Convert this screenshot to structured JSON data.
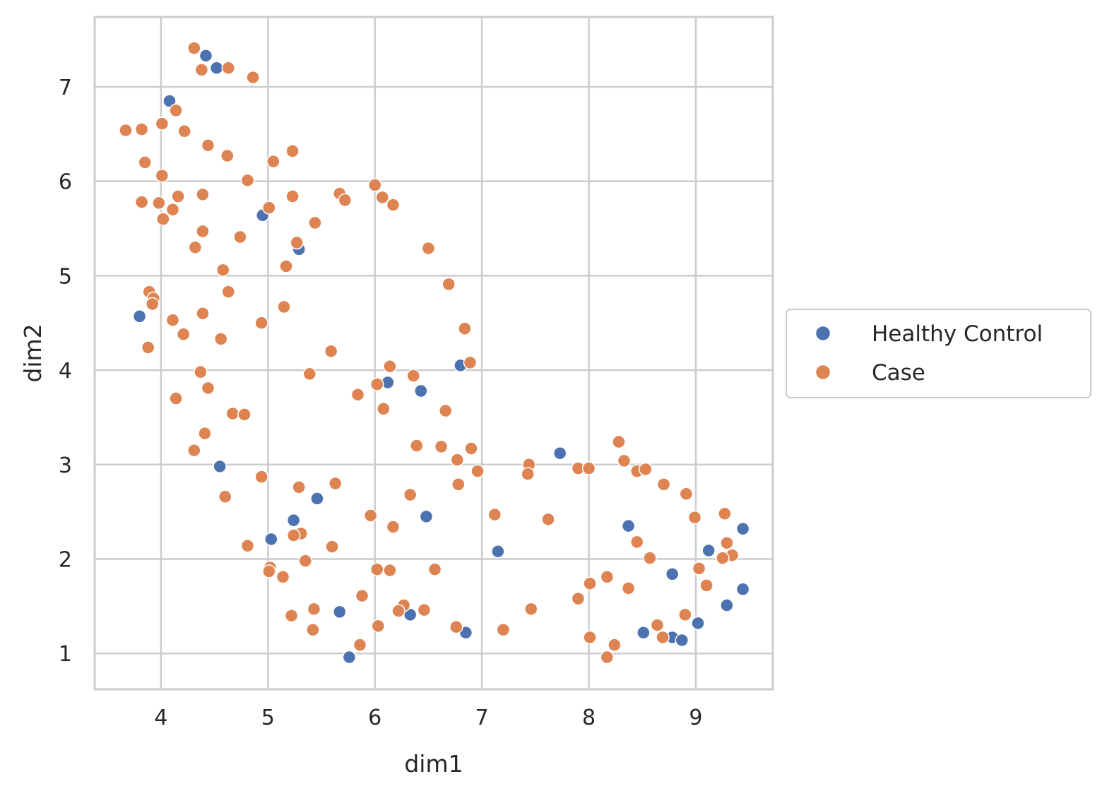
{
  "chart_data": {
    "type": "scatter",
    "xlabel": "dim1",
    "ylabel": "dim2",
    "xlim": [
      3.38,
      9.72
    ],
    "ylim": [
      0.62,
      7.74
    ],
    "xticks": [
      4,
      5,
      6,
      7,
      8,
      9
    ],
    "yticks": [
      1,
      2,
      3,
      4,
      5,
      6,
      7
    ],
    "grid": true,
    "legend_position": "center-right-outside",
    "series": [
      {
        "name": "Healthy Control",
        "color": "#4c72b0",
        "points": [
          [
            4.42,
            7.33
          ],
          [
            4.52,
            7.2
          ],
          [
            4.08,
            6.85
          ],
          [
            4.95,
            5.64
          ],
          [
            5.29,
            5.28
          ],
          [
            3.8,
            4.57
          ],
          [
            6.8,
            4.05
          ],
          [
            6.12,
            3.87
          ],
          [
            6.43,
            3.78
          ],
          [
            4.55,
            2.98
          ],
          [
            7.73,
            3.12
          ],
          [
            5.46,
            2.64
          ],
          [
            5.24,
            2.41
          ],
          [
            6.48,
            2.45
          ],
          [
            5.03,
            2.21
          ],
          [
            7.15,
            2.08
          ],
          [
            8.37,
            2.35
          ],
          [
            9.44,
            2.32
          ],
          [
            9.12,
            2.09
          ],
          [
            8.78,
            1.84
          ],
          [
            9.44,
            1.68
          ],
          [
            9.29,
            1.51
          ],
          [
            9.02,
            1.32
          ],
          [
            5.67,
            1.44
          ],
          [
            6.33,
            1.41
          ],
          [
            6.85,
            1.22
          ],
          [
            8.51,
            1.22
          ],
          [
            8.78,
            1.17
          ],
          [
            8.87,
            1.14
          ],
          [
            5.76,
            0.96
          ]
        ]
      },
      {
        "name": "Case",
        "color": "#dd8452",
        "points": [
          [
            4.31,
            7.41
          ],
          [
            4.38,
            7.18
          ],
          [
            4.63,
            7.2
          ],
          [
            4.86,
            7.1
          ],
          [
            4.14,
            6.75
          ],
          [
            3.67,
            6.54
          ],
          [
            3.82,
            6.55
          ],
          [
            4.01,
            6.61
          ],
          [
            4.22,
            6.53
          ],
          [
            4.44,
            6.38
          ],
          [
            4.62,
            6.27
          ],
          [
            5.05,
            6.21
          ],
          [
            5.23,
            6.32
          ],
          [
            3.85,
            6.2
          ],
          [
            4.01,
            6.06
          ],
          [
            4.81,
            6.01
          ],
          [
            6.0,
            5.96
          ],
          [
            5.67,
            5.87
          ],
          [
            5.72,
            5.8
          ],
          [
            6.07,
            5.83
          ],
          [
            6.17,
            5.75
          ],
          [
            3.82,
            5.78
          ],
          [
            3.98,
            5.77
          ],
          [
            4.16,
            5.84
          ],
          [
            4.39,
            5.86
          ],
          [
            5.23,
            5.84
          ],
          [
            4.11,
            5.7
          ],
          [
            5.01,
            5.72
          ],
          [
            4.02,
            5.6
          ],
          [
            5.44,
            5.56
          ],
          [
            4.39,
            5.47
          ],
          [
            4.74,
            5.41
          ],
          [
            5.27,
            5.35
          ],
          [
            4.32,
            5.3
          ],
          [
            6.5,
            5.29
          ],
          [
            5.17,
            5.1
          ],
          [
            4.58,
            5.06
          ],
          [
            6.69,
            4.91
          ],
          [
            3.89,
            4.83
          ],
          [
            4.63,
            4.83
          ],
          [
            3.93,
            4.76
          ],
          [
            3.92,
            4.7
          ],
          [
            5.15,
            4.67
          ],
          [
            4.39,
            4.6
          ],
          [
            4.11,
            4.53
          ],
          [
            4.94,
            4.5
          ],
          [
            6.84,
            4.44
          ],
          [
            4.21,
            4.38
          ],
          [
            4.56,
            4.33
          ],
          [
            3.88,
            4.24
          ],
          [
            5.59,
            4.2
          ],
          [
            6.89,
            4.08
          ],
          [
            6.14,
            4.04
          ],
          [
            4.37,
            3.98
          ],
          [
            5.39,
            3.96
          ],
          [
            6.36,
            3.94
          ],
          [
            6.02,
            3.85
          ],
          [
            4.44,
            3.81
          ],
          [
            5.84,
            3.74
          ],
          [
            4.14,
            3.7
          ],
          [
            6.08,
            3.59
          ],
          [
            6.66,
            3.57
          ],
          [
            4.67,
            3.54
          ],
          [
            4.78,
            3.53
          ],
          [
            4.41,
            3.33
          ],
          [
            6.39,
            3.2
          ],
          [
            6.62,
            3.19
          ],
          [
            6.9,
            3.17
          ],
          [
            4.31,
            3.15
          ],
          [
            6.77,
            3.05
          ],
          [
            7.44,
            3.0
          ],
          [
            7.9,
            2.96
          ],
          [
            8.0,
            2.96
          ],
          [
            8.28,
            3.24
          ],
          [
            8.33,
            3.04
          ],
          [
            8.45,
            2.93
          ],
          [
            8.53,
            2.95
          ],
          [
            6.96,
            2.93
          ],
          [
            7.43,
            2.9
          ],
          [
            4.94,
            2.87
          ],
          [
            5.29,
            2.76
          ],
          [
            5.63,
            2.8
          ],
          [
            6.78,
            2.79
          ],
          [
            8.7,
            2.79
          ],
          [
            8.91,
            2.69
          ],
          [
            6.33,
            2.68
          ],
          [
            4.6,
            2.66
          ],
          [
            5.96,
            2.46
          ],
          [
            7.12,
            2.47
          ],
          [
            7.62,
            2.42
          ],
          [
            8.99,
            2.44
          ],
          [
            9.27,
            2.48
          ],
          [
            6.17,
            2.34
          ],
          [
            5.31,
            2.27
          ],
          [
            5.24,
            2.25
          ],
          [
            8.45,
            2.18
          ],
          [
            9.29,
            2.17
          ],
          [
            4.81,
            2.14
          ],
          [
            5.6,
            2.13
          ],
          [
            9.34,
            2.04
          ],
          [
            9.25,
            2.01
          ],
          [
            8.57,
            2.01
          ],
          [
            5.35,
            1.98
          ],
          [
            5.02,
            1.91
          ],
          [
            5.01,
            1.87
          ],
          [
            6.02,
            1.89
          ],
          [
            6.14,
            1.88
          ],
          [
            6.56,
            1.89
          ],
          [
            9.03,
            1.9
          ],
          [
            5.14,
            1.81
          ],
          [
            8.17,
            1.81
          ],
          [
            8.01,
            1.74
          ],
          [
            9.1,
            1.72
          ],
          [
            8.37,
            1.69
          ],
          [
            5.88,
            1.61
          ],
          [
            7.9,
            1.58
          ],
          [
            6.27,
            1.51
          ],
          [
            6.22,
            1.45
          ],
          [
            6.46,
            1.46
          ],
          [
            5.43,
            1.47
          ],
          [
            7.46,
            1.47
          ],
          [
            5.22,
            1.4
          ],
          [
            8.9,
            1.41
          ],
          [
            6.03,
            1.29
          ],
          [
            6.76,
            1.28
          ],
          [
            8.64,
            1.3
          ],
          [
            5.42,
            1.25
          ],
          [
            7.2,
            1.25
          ],
          [
            8.69,
            1.17
          ],
          [
            8.01,
            1.17
          ],
          [
            5.86,
            1.09
          ],
          [
            8.24,
            1.09
          ],
          [
            8.17,
            0.96
          ]
        ]
      }
    ]
  }
}
